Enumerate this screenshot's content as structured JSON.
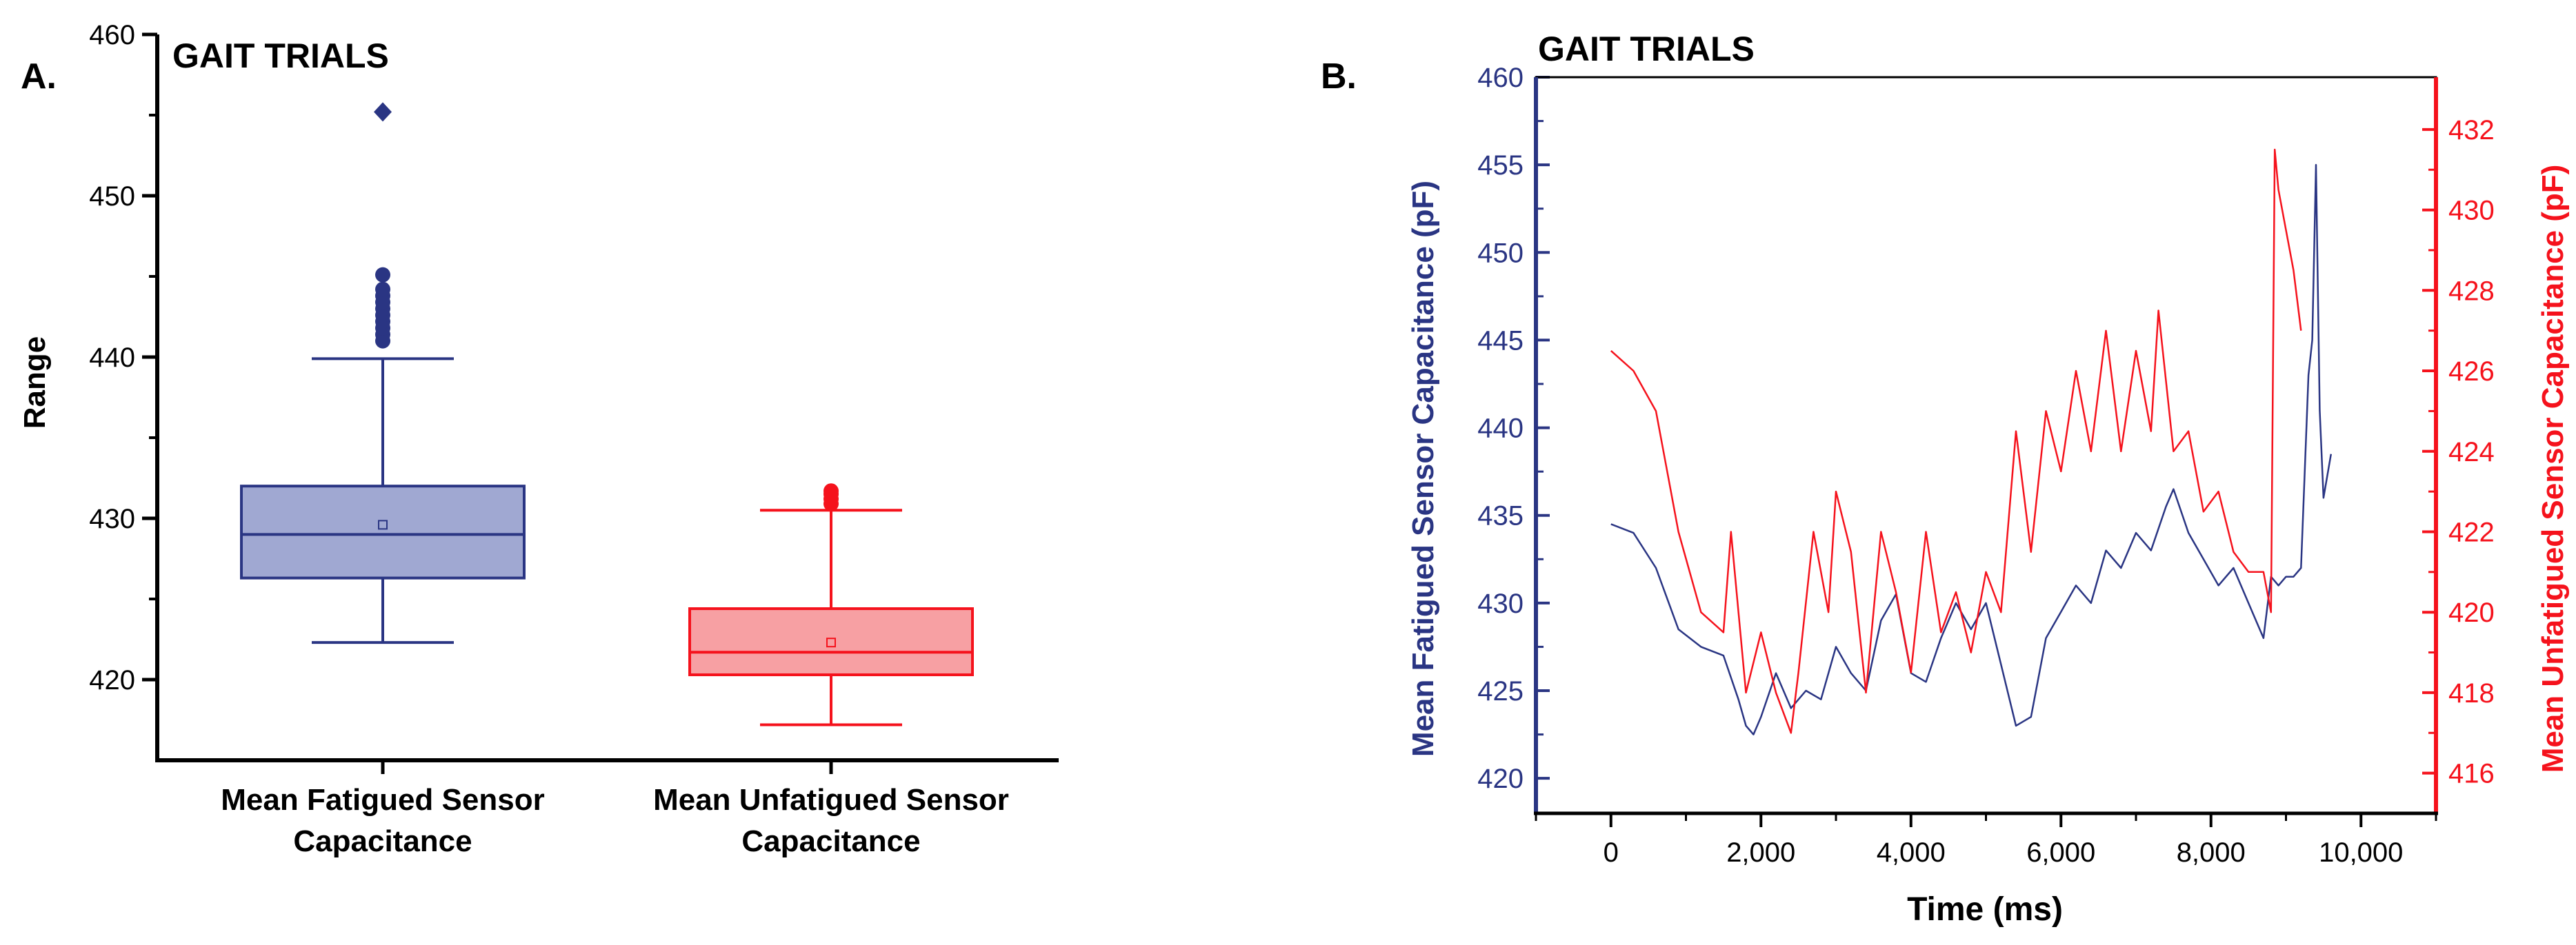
{
  "panels": {
    "a": {
      "letter": "A.",
      "title": "GAIT TRIALS",
      "ylabel": "Range",
      "categories": [
        "Mean Fatigued Sensor\nCapacitance",
        "Mean Unfatigued Sensor\nCapacitance"
      ]
    },
    "b": {
      "letter": "B.",
      "title": "GAIT TRIALS",
      "xlabel": "Time (ms)",
      "ylabel_left": "Mean Fatigued Sensor Capacitance (pF)",
      "ylabel_right": "Mean Unfatigued Sensor Capacitance (pF)"
    }
  },
  "colors": {
    "fatigued": "#2a3583",
    "fatigued_fill": "#a0a8d2",
    "unfatigued": "#f5121c",
    "unfatigued_fill": "#f7a0a3"
  },
  "chart_data": [
    {
      "type": "box",
      "title": "GAIT TRIALS",
      "ylabel": "Range",
      "ylim": [
        415,
        460
      ],
      "yticks": [
        420,
        430,
        440,
        450,
        460
      ],
      "categories": [
        "Mean Fatigued Sensor Capacitance",
        "Mean Unfatigued Sensor Capacitance"
      ],
      "boxes": [
        {
          "category": "Mean Fatigued Sensor Capacitance",
          "whisker_low": 422.3,
          "q1": 426.3,
          "median": 429.0,
          "mean": 429.6,
          "q3": 432.0,
          "whisker_high": 439.9,
          "outliers": [
            441.0,
            441.4,
            441.8,
            442.2,
            442.6,
            443.0,
            443.4,
            443.8,
            444.2,
            445.1,
            455.2
          ]
        },
        {
          "category": "Mean Unfatigued Sensor Capacitance",
          "whisker_low": 417.2,
          "q1": 420.3,
          "median": 421.7,
          "mean": 422.3,
          "q3": 424.4,
          "whisker_high": 430.5,
          "outliers": [
            430.9,
            431.2,
            431.5,
            431.7
          ]
        }
      ]
    },
    {
      "type": "line",
      "title": "GAIT TRIALS",
      "xlabel": "Time (ms)",
      "ylabel": "Mean Fatigued Sensor Capacitance (pF)",
      "y2label": "Mean Unfatigued Sensor Capacitance (pF)",
      "xlim": [
        -1000,
        11000
      ],
      "xticks": [
        0,
        2000,
        4000,
        6000,
        8000,
        10000
      ],
      "xtick_labels": [
        "0",
        "2,000",
        "4,000",
        "6,000",
        "8,000",
        "10,000"
      ],
      "ylim": [
        418,
        460
      ],
      "yticks": [
        420,
        425,
        430,
        435,
        440,
        445,
        450,
        455,
        460
      ],
      "y2lim": [
        415,
        433.3
      ],
      "y2ticks": [
        416,
        418,
        420,
        422,
        424,
        426,
        428,
        430,
        432
      ],
      "series": [
        {
          "name": "Mean Fatigued Sensor Capacitance",
          "axis": "left",
          "x": [
            0,
            300,
            600,
            900,
            1200,
            1500,
            1700,
            1800,
            1900,
            2000,
            2200,
            2400,
            2600,
            2800,
            3000,
            3200,
            3400,
            3600,
            3800,
            4000,
            4200,
            4400,
            4600,
            4800,
            5000,
            5200,
            5400,
            5600,
            5800,
            6000,
            6200,
            6400,
            6600,
            6800,
            7000,
            7200,
            7400,
            7500,
            7700,
            7900,
            8100,
            8300,
            8500,
            8700,
            8800,
            8900,
            9000,
            9100,
            9200,
            9300,
            9350,
            9400,
            9450,
            9500,
            9600
          ],
          "y": [
            434.5,
            434.0,
            432.0,
            428.5,
            427.5,
            427.0,
            424.5,
            423.0,
            422.5,
            423.5,
            426.0,
            424.0,
            425.0,
            424.5,
            427.5,
            426.0,
            425.0,
            429.0,
            430.5,
            426.0,
            425.5,
            428.0,
            430.0,
            428.5,
            430.0,
            426.5,
            423.0,
            423.5,
            428.0,
            429.5,
            431.0,
            430.0,
            433.0,
            432.0,
            434.0,
            433.0,
            435.5,
            436.5,
            434.0,
            432.5,
            431.0,
            432.0,
            430.0,
            428.0,
            431.5,
            431.0,
            431.5,
            431.5,
            432.0,
            443.0,
            445.0,
            455.0,
            441.0,
            436.0,
            438.5
          ]
        },
        {
          "name": "Mean Unfatigued Sensor Capacitance",
          "axis": "right",
          "x": [
            0,
            300,
            600,
            900,
            1200,
            1500,
            1600,
            1800,
            2000,
            2200,
            2400,
            2500,
            2700,
            2900,
            3000,
            3200,
            3400,
            3600,
            3800,
            4000,
            4200,
            4400,
            4600,
            4800,
            5000,
            5200,
            5400,
            5600,
            5800,
            6000,
            6200,
            6400,
            6600,
            6800,
            7000,
            7200,
            7300,
            7500,
            7700,
            7900,
            8100,
            8300,
            8500,
            8700,
            8800,
            8850,
            8900,
            9000,
            9100,
            9200
          ],
          "y": [
            426.5,
            426.0,
            425.0,
            422.0,
            420.0,
            419.5,
            422.0,
            418.0,
            419.5,
            418.0,
            417.0,
            418.5,
            422.0,
            420.0,
            423.0,
            421.5,
            418.0,
            422.0,
            420.5,
            418.5,
            422.0,
            419.5,
            420.5,
            419.0,
            421.0,
            420.0,
            424.5,
            421.5,
            425.0,
            423.5,
            426.0,
            424.0,
            427.0,
            424.0,
            426.5,
            424.5,
            427.5,
            424.0,
            424.5,
            422.5,
            423.0,
            421.5,
            421.0,
            421.0,
            420.0,
            431.5,
            430.5,
            429.5,
            428.5,
            427.0
          ]
        }
      ]
    }
  ]
}
